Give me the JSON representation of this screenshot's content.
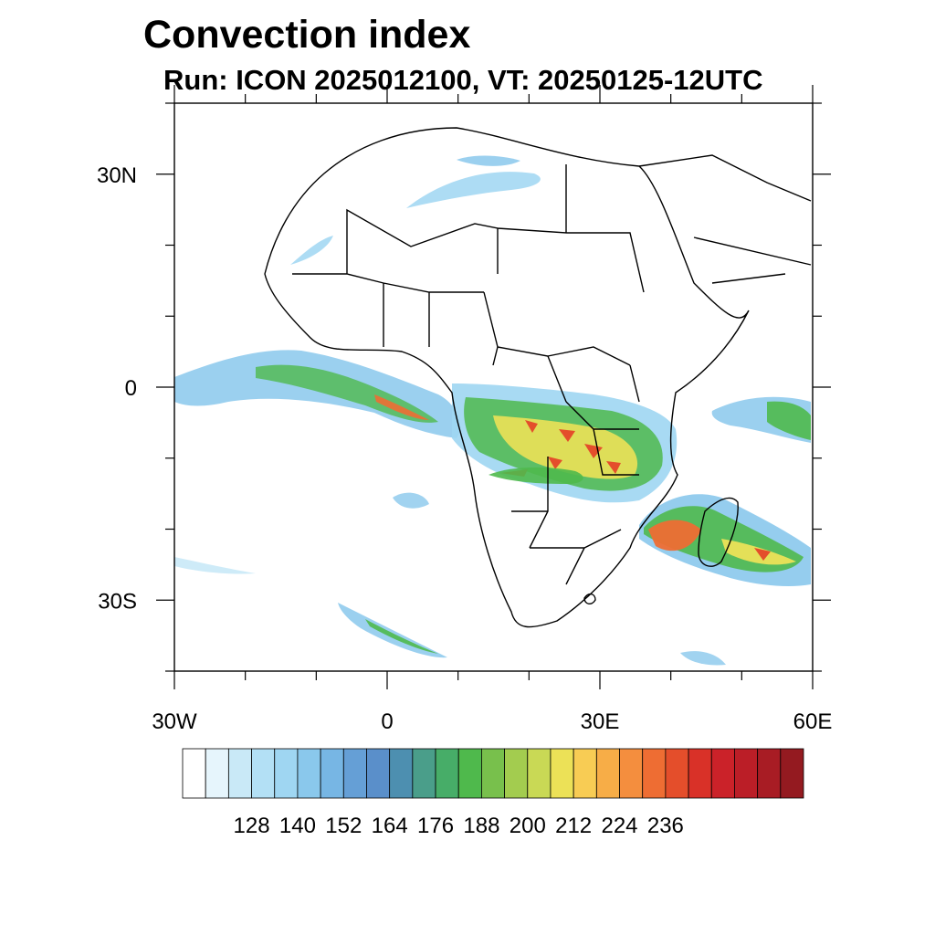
{
  "title": "Convection index",
  "subtitle": "Run: ICON 2025012100,  VT: 20250125-12UTC",
  "map": {
    "lon_range": [
      -30,
      60
    ],
    "lat_range": [
      -40,
      40
    ],
    "lon_tick_labels": [
      "30W",
      "0",
      "30E",
      "60E"
    ],
    "lat_tick_labels": [
      "30N",
      "0",
      "30S"
    ]
  },
  "colorbar": {
    "labels": [
      "128",
      "140",
      "152",
      "164",
      "176",
      "188",
      "200",
      "212",
      "224",
      "236"
    ],
    "colors": [
      "#ffffff",
      "#e6f5fc",
      "#c9e9f7",
      "#b3e0f5",
      "#9fd6f2",
      "#8ac8ec",
      "#77b6e4",
      "#659fd6",
      "#5a8fca",
      "#4d8fb0",
      "#4a9e8a",
      "#47ad68",
      "#4fb94c",
      "#78c04c",
      "#a3cc4f",
      "#c9d955",
      "#ece157",
      "#f8cc54",
      "#f7ad47",
      "#f48e3e",
      "#ee6d33",
      "#e44e2b",
      "#d93128",
      "#cb2229",
      "#bb1e27",
      "#a81c24",
      "#941a20"
    ]
  }
}
